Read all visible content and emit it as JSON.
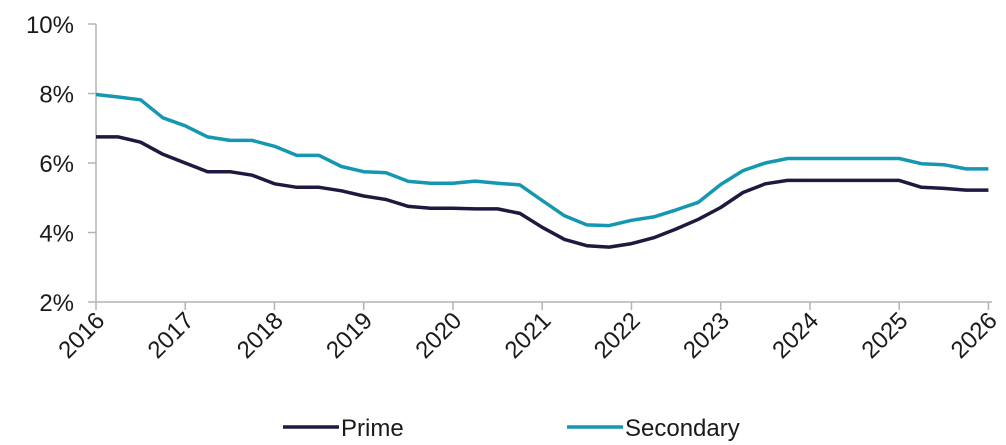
{
  "chart_data": {
    "type": "line",
    "title": "",
    "xlabel": "",
    "ylabel": "",
    "xlim": [
      2016,
      2026.04
    ],
    "ylim": [
      2,
      10
    ],
    "y_ticks": [
      "2%",
      "4%",
      "6%",
      "8%",
      "10%"
    ],
    "y_tick_values": [
      2,
      4,
      6,
      8,
      10
    ],
    "x_ticks": [
      "2016",
      "2017",
      "2018",
      "2019",
      "2020",
      "2021",
      "2022",
      "2023",
      "2024",
      "2025",
      "2026"
    ],
    "x_tick_values": [
      2016,
      2017,
      2018,
      2019,
      2020,
      2021,
      2022,
      2023,
      2024,
      2025,
      2026
    ],
    "grid": false,
    "legend_position": "bottom",
    "x": [
      2016.0,
      2016.25,
      2016.5,
      2016.75,
      2017.0,
      2017.25,
      2017.5,
      2017.75,
      2018.0,
      2018.25,
      2018.5,
      2018.75,
      2019.0,
      2019.25,
      2019.5,
      2019.75,
      2020.0,
      2020.25,
      2020.5,
      2020.75,
      2021.0,
      2021.25,
      2021.5,
      2021.75,
      2022.0,
      2022.25,
      2022.5,
      2022.75,
      2023.0,
      2023.25,
      2023.5,
      2023.75,
      2024.0,
      2024.25,
      2024.5,
      2024.75,
      2025.0,
      2025.25,
      2025.5,
      2025.75,
      2026.0
    ],
    "series": [
      {
        "name": "Prime",
        "color": "#1c1a3f",
        "values": [
          6.75,
          6.75,
          6.6,
          6.25,
          6.0,
          5.75,
          5.75,
          5.65,
          5.4,
          5.3,
          5.3,
          5.2,
          5.05,
          4.95,
          4.75,
          4.7,
          4.7,
          4.68,
          4.68,
          4.55,
          4.15,
          3.8,
          3.62,
          3.58,
          3.68,
          3.85,
          4.1,
          4.38,
          4.72,
          5.15,
          5.4,
          5.5,
          5.5,
          5.5,
          5.5,
          5.5,
          5.5,
          5.3,
          5.27,
          5.22,
          5.22
        ]
      },
      {
        "name": "Secondary",
        "color": "#1497b0",
        "values": [
          7.97,
          7.9,
          7.82,
          7.3,
          7.07,
          6.75,
          6.65,
          6.65,
          6.48,
          6.22,
          6.22,
          5.9,
          5.75,
          5.72,
          5.47,
          5.42,
          5.42,
          5.48,
          5.42,
          5.37,
          4.92,
          4.48,
          4.22,
          4.2,
          4.35,
          4.45,
          4.65,
          4.87,
          5.38,
          5.78,
          6.0,
          6.13,
          6.13,
          6.13,
          6.13,
          6.13,
          6.13,
          5.98,
          5.95,
          5.83,
          5.83
        ]
      }
    ]
  }
}
